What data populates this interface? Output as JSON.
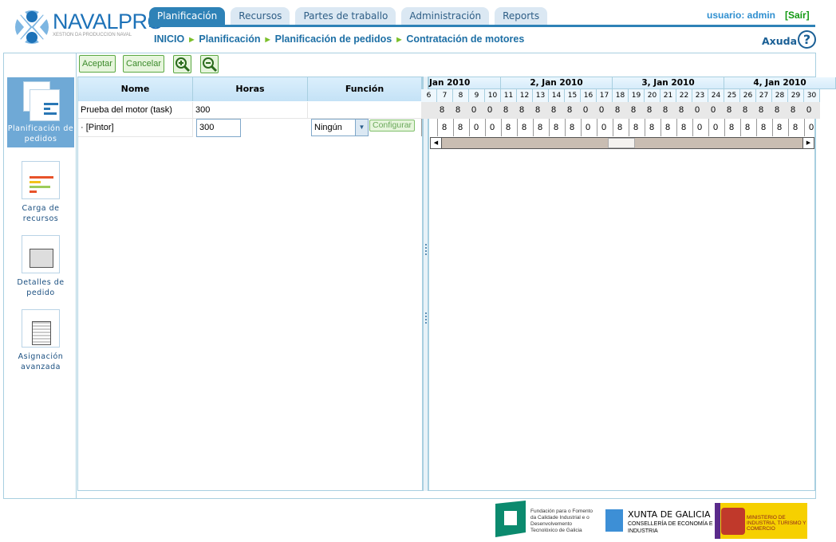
{
  "logo": {
    "name": "NAVALPRO",
    "tagline": "XESTION DA PRODUCCION NAVAL"
  },
  "tabs": [
    {
      "label": "Planificación",
      "active": true
    },
    {
      "label": "Recursos"
    },
    {
      "label": "Partes de traballo"
    },
    {
      "label": "Administración"
    },
    {
      "label": "Reports"
    }
  ],
  "breadcrumb": [
    "INICIO",
    "Planificación",
    "Planificación de pedidos",
    "Contratación de motores"
  ],
  "user": {
    "label": "usuario: admin",
    "logout": "[Saír]"
  },
  "help": {
    "label": "Axuda",
    "icon": "question-icon"
  },
  "sidebar": [
    {
      "label": "Planificación de pedidos",
      "active": true
    },
    {
      "label": "Carga de recursos"
    },
    {
      "label": "Detalles de pedido"
    },
    {
      "label": "Asignación avanzada"
    }
  ],
  "toolbar": {
    "accept": "Aceptar",
    "cancel": "Cancelar",
    "zoom_in": "zoom-in-icon",
    "zoom_out": "zoom-out-icon"
  },
  "table": {
    "headers": [
      "Nome",
      "Horas",
      "Función"
    ],
    "rows": [
      {
        "name": "Prueba del motor (task)",
        "hours": "300",
        "function": ""
      },
      {
        "name": "· [Pintor]",
        "hours": "300",
        "function": "Ningún",
        "action": "Configurar"
      }
    ]
  },
  "gantt": {
    "weeks": [
      "Jan 2010",
      "2, Jan 2010",
      "3, Jan 2010",
      "4, Jan 2010"
    ],
    "days": [
      "6",
      "7",
      "8",
      "9",
      "10",
      "11",
      "12",
      "13",
      "14",
      "15",
      "16",
      "17",
      "18",
      "19",
      "20",
      "21",
      "22",
      "23",
      "24",
      "25",
      "26",
      "27",
      "28",
      "29",
      "30"
    ],
    "row1": [
      "",
      "8",
      "8",
      "0",
      "0",
      "8",
      "8",
      "8",
      "8",
      "8",
      "0",
      "0",
      "8",
      "8",
      "8",
      "8",
      "8",
      "0",
      "0",
      "8",
      "8",
      "8",
      "8",
      "8",
      "0"
    ],
    "row2": [
      "",
      "8",
      "8",
      "0",
      "0",
      "8",
      "8",
      "8",
      "8",
      "8",
      "0",
      "0",
      "8",
      "8",
      "8",
      "8",
      "8",
      "0",
      "0",
      "8",
      "8",
      "8",
      "8",
      "8",
      "0"
    ]
  },
  "footer": {
    "fundacion": "Fundación para o Fomento da Calidade Industrial e o Desenvolvemento Tecnolóxico de Galicia",
    "xunta": "XUNTA DE GALICIA",
    "xunta_sub": "CONSELLERÍA DE ECONOMÍA E INDUSTRIA",
    "ministerio": "MINISTERIO DE INDUSTRIA, TURISMO Y COMERCIO"
  },
  "colors": {
    "accent": "#2e82b7",
    "link": "#1d6fa5",
    "button_green": "#3b8a2a"
  }
}
